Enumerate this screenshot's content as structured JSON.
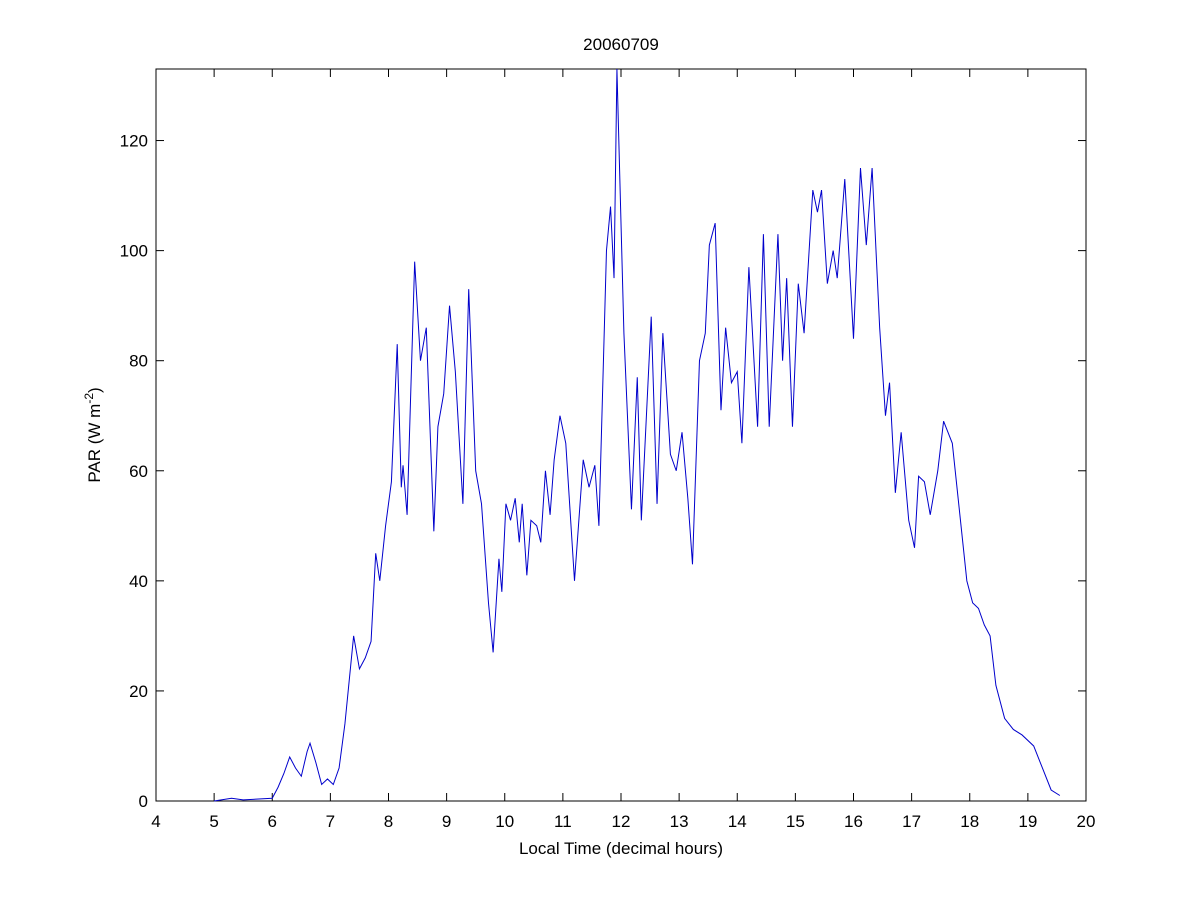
{
  "chart_data": {
    "type": "line",
    "title": "20060709",
    "xlabel": "Local Time (decimal hours)",
    "ylabel": [
      "PAR (W m",
      "-2",
      ")"
    ],
    "xlim": [
      4,
      20
    ],
    "xticks": [
      4,
      5,
      6,
      7,
      8,
      9,
      10,
      11,
      12,
      13,
      14,
      15,
      16,
      17,
      18,
      19,
      20
    ],
    "ylim": [
      0,
      133
    ],
    "yticks": [
      0,
      20,
      40,
      60,
      80,
      100,
      120
    ],
    "grid": false,
    "x": [
      5.0,
      5.3,
      5.5,
      6.0,
      6.1,
      6.2,
      6.3,
      6.4,
      6.5,
      6.6,
      6.65,
      6.75,
      6.85,
      6.95,
      7.05,
      7.15,
      7.25,
      7.4,
      7.5,
      7.6,
      7.7,
      7.78,
      7.85,
      7.95,
      8.05,
      8.15,
      8.22,
      8.25,
      8.32,
      8.45,
      8.55,
      8.65,
      8.78,
      8.85,
      8.95,
      9.05,
      9.15,
      9.28,
      9.38,
      9.5,
      9.6,
      9.72,
      9.8,
      9.9,
      9.95,
      10.02,
      10.1,
      10.18,
      10.25,
      10.3,
      10.38,
      10.45,
      10.55,
      10.62,
      10.7,
      10.78,
      10.85,
      10.95,
      11.05,
      11.2,
      11.35,
      11.45,
      11.55,
      11.62,
      11.75,
      11.82,
      11.88,
      11.93,
      12.05,
      12.18,
      12.28,
      12.35,
      12.52,
      12.62,
      12.72,
      12.85,
      12.95,
      13.05,
      13.15,
      13.23,
      13.35,
      13.45,
      13.52,
      13.62,
      13.72,
      13.8,
      13.9,
      14.0,
      14.08,
      14.2,
      14.35,
      14.45,
      14.55,
      14.7,
      14.78,
      14.85,
      14.95,
      15.05,
      15.15,
      15.3,
      15.38,
      15.45,
      15.55,
      15.65,
      15.72,
      15.85,
      16.0,
      16.12,
      16.22,
      16.32,
      16.45,
      16.55,
      16.62,
      16.72,
      16.82,
      16.95,
      17.05,
      17.12,
      17.22,
      17.32,
      17.45,
      17.55,
      17.7,
      17.8,
      17.95,
      18.05,
      18.15,
      18.25,
      18.35,
      18.45,
      18.6,
      18.75,
      18.9,
      19.1,
      19.25,
      19.4,
      19.55
    ],
    "series": [
      {
        "name": "PAR",
        "color": "#0000cc",
        "values": [
          0,
          0.5,
          0.2,
          0.5,
          2.5,
          5,
          8,
          6,
          4.5,
          9,
          10.5,
          7,
          3,
          4,
          3,
          6,
          14,
          30,
          24,
          26,
          29,
          45,
          40,
          50,
          58,
          83,
          57,
          61,
          52,
          98,
          80,
          86,
          49,
          68,
          74,
          90,
          78,
          54,
          93,
          60,
          54,
          36,
          27,
          44,
          38,
          54,
          51,
          55,
          47,
          54,
          41,
          51,
          50,
          47,
          60,
          52,
          62,
          70,
          65,
          40,
          62,
          57,
          61,
          50,
          100,
          108,
          95,
          133,
          85,
          53,
          77,
          51,
          88,
          54,
          85,
          63,
          60,
          67,
          55,
          43,
          80,
          85,
          101,
          105,
          71,
          86,
          76,
          78,
          65,
          97,
          68,
          103,
          68,
          103,
          80,
          95,
          68,
          94,
          85,
          111,
          107,
          111,
          94,
          100,
          95,
          113,
          84,
          115,
          101,
          115,
          86,
          70,
          76,
          56,
          67,
          51,
          46,
          59,
          58,
          52,
          60,
          69,
          65,
          55,
          40,
          36,
          35,
          32,
          30,
          21,
          15,
          13,
          12,
          10,
          6,
          2,
          1
        ]
      }
    ]
  }
}
